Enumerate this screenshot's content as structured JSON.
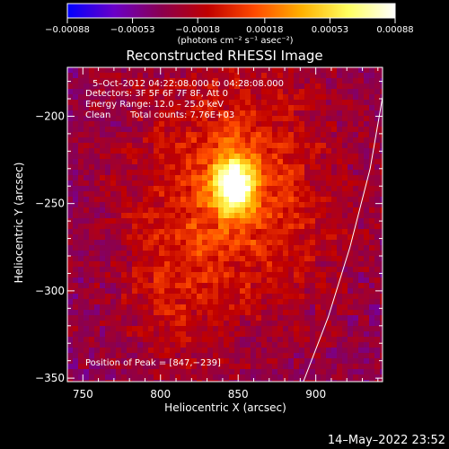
{
  "chart_data": {
    "type": "heatmap",
    "title": "Reconstructed RHESSI Image",
    "xlabel": "Heliocentric X (arcsec)",
    "ylabel": "Heliocentric Y (arcsec)",
    "xlim": [
      740,
      943
    ],
    "ylim": [
      -352,
      -172
    ],
    "x_ticks": [
      750,
      800,
      850,
      900
    ],
    "y_ticks": [
      -200,
      -250,
      -300,
      -350
    ],
    "x_tick_labels": [
      "750",
      "800",
      "850",
      "900"
    ],
    "y_tick_labels": [
      "−200",
      "−250",
      "−300",
      "−350"
    ],
    "colorbar": {
      "ticks": [
        -0.00088,
        -0.00053,
        -0.00018,
        0.00018,
        0.00053,
        0.00088
      ],
      "tick_labels": [
        "−0.00088",
        "−0.00053",
        "−0.00018",
        "0.00018",
        "0.00053",
        "0.00088"
      ],
      "units": "(photons cm⁻² s⁻¹ asec⁻²)",
      "colors": [
        "#0000ff",
        "#6a00c8",
        "#8a0050",
        "#c00000",
        "#ff4a00",
        "#ffb000",
        "#ffff60",
        "#ffffff"
      ]
    },
    "annotations": {
      "time": "5–Oct–2012 04:22:08.000 to 04:28:08.000",
      "detectors": "Detectors: 3F 5F 6F 7F 8F, Att 0",
      "energy": "Energy Range: 12.0 – 25.0 keV",
      "method": "Clean",
      "counts": "Total counts: 7.76E+03",
      "peak": "Position of Peak = [847,−239]"
    },
    "peak_position": [
      847,
      -239
    ],
    "peak_intensity": 0.00088,
    "limb": [
      [
        943,
        -189
      ],
      [
        935,
        -230
      ],
      [
        922,
        -275
      ],
      [
        908,
        -315
      ],
      [
        892,
        -352
      ]
    ]
  },
  "footer": {
    "timestamp": "14–May–2022 23:52"
  }
}
